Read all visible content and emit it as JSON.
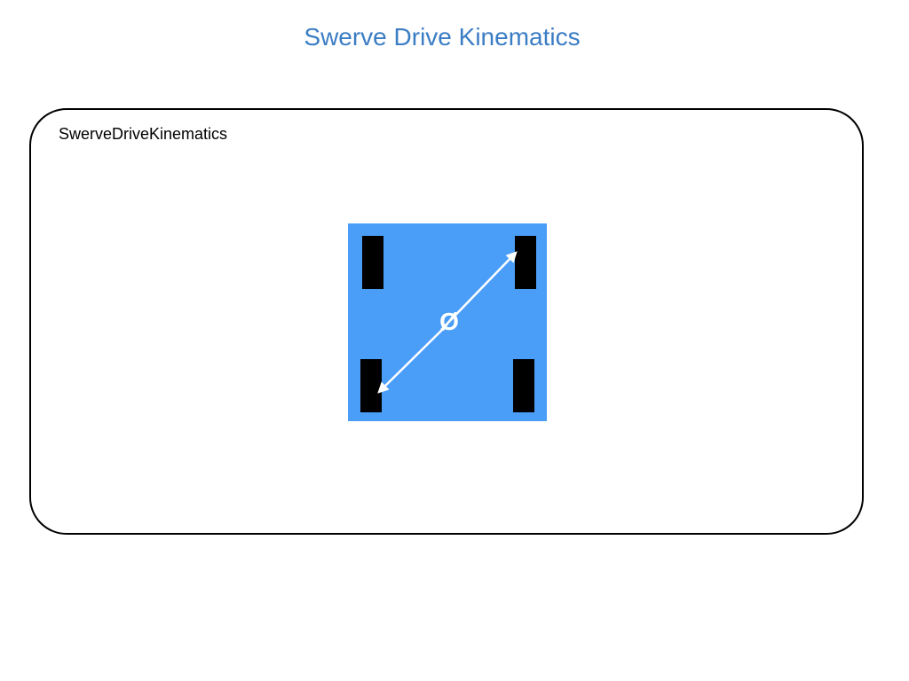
{
  "title": "Swerve Drive Kinematics",
  "panel": {
    "label": "SwerveDriveKinematics"
  },
  "robot": {
    "body_color": "#4a9ef8",
    "wheel_color": "#000000",
    "arrow_color": "#ffffff",
    "center_symbol": "Ø",
    "wheels": [
      "front-left",
      "front-right",
      "back-left",
      "back-right"
    ]
  }
}
